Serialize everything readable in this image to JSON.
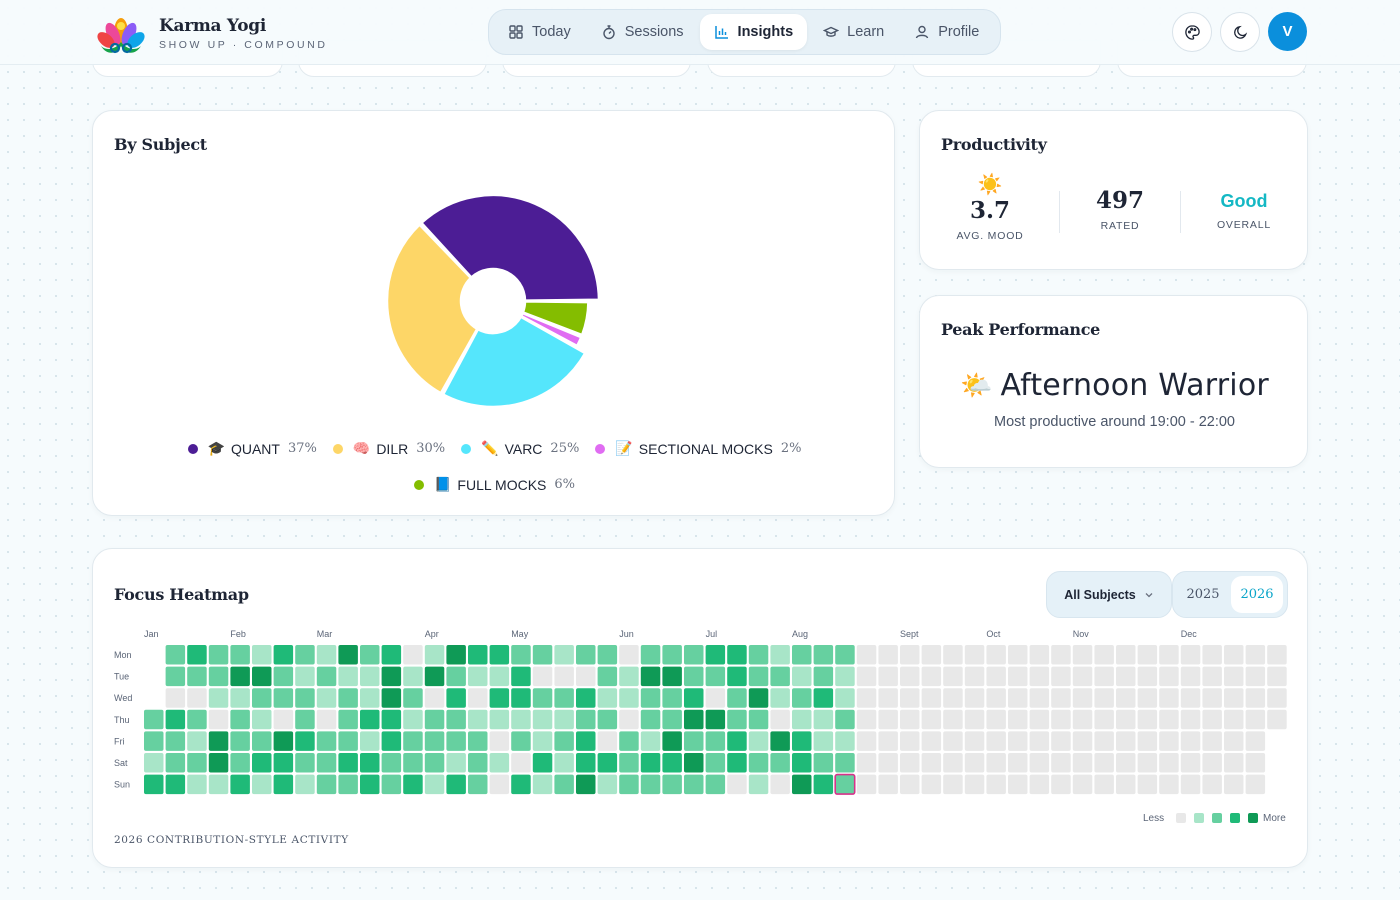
{
  "brand": {
    "title": "Karma Yogi",
    "tagline": "SHOW UP · COMPOUND"
  },
  "nav": [
    {
      "label": "Today",
      "icon": "grid-icon",
      "active": false
    },
    {
      "label": "Sessions",
      "icon": "stopwatch-icon",
      "active": false
    },
    {
      "label": "Insights",
      "icon": "bar-chart-icon",
      "active": true
    },
    {
      "label": "Learn",
      "icon": "graduation-cap-icon",
      "active": false
    },
    {
      "label": "Profile",
      "icon": "user-icon",
      "active": false
    }
  ],
  "user": {
    "initial": "V"
  },
  "colors": {
    "accent": "#0b8fdc",
    "teal": "#0aa5c9",
    "good": "#14b8c4"
  },
  "by_subject": {
    "title": "By Subject",
    "chart_data": {
      "type": "pie",
      "donut": true,
      "slices": [
        {
          "label": "QUANT",
          "emoji": "🎓",
          "pct": 37,
          "color": "#4c1d95"
        },
        {
          "label": "FULL MOCKS",
          "emoji": "📘",
          "pct": 6,
          "color": "#84bd00"
        },
        {
          "label": "SECTIONAL MOCKS",
          "emoji": "📝",
          "pct": 2,
          "color": "#e06cf2"
        },
        {
          "label": "VARC",
          "emoji": "✏️",
          "pct": 25,
          "color": "#55e6fc"
        },
        {
          "label": "DILR",
          "emoji": "🧠",
          "pct": 30,
          "color": "#fdd667"
        }
      ],
      "legend_order": [
        "QUANT",
        "DILR",
        "VARC",
        "SECTIONAL MOCKS",
        "FULL MOCKS"
      ]
    }
  },
  "productivity": {
    "title": "Productivity",
    "mood": {
      "value": "3.7",
      "label": "AVG. MOOD",
      "emoji": "☀️"
    },
    "rated": {
      "value": "497",
      "label": "RATED"
    },
    "overall": {
      "value": "Good",
      "label": "OVERALL"
    }
  },
  "peak": {
    "title": "Peak Performance",
    "emoji": "🌤️",
    "name": "Afternoon Warrior",
    "subtitle": "Most productive around 19:00 - 22:00"
  },
  "heatmap": {
    "title": "Focus Heatmap",
    "subject_filter": "All Subjects",
    "years": [
      "2025",
      "2026"
    ],
    "selected_year": "2026",
    "months": [
      "Jan",
      "Feb",
      "Mar",
      "Apr",
      "May",
      "Jun",
      "Jul",
      "Aug",
      "Sept",
      "Oct",
      "Nov",
      "Dec"
    ],
    "days": [
      "Mon",
      "Tue",
      "Wed",
      "Thu",
      "Fri",
      "Sat",
      "Sun"
    ],
    "legend_less": "Less",
    "legend_more": "More",
    "level_colors": [
      "#e8e8e8",
      "#a8e5c8",
      "#66d0a0",
      "#1fba78",
      "#0f9a56"
    ],
    "footer": "2026 CONTRIBUTION-STYLE ACTIVITY"
  }
}
